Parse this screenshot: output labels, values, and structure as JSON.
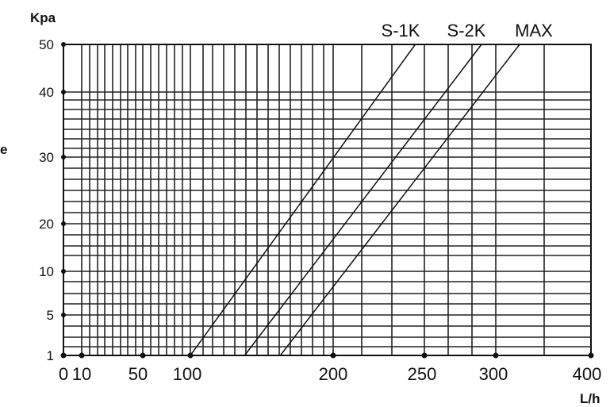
{
  "chart_data": {
    "type": "line",
    "y_unit": "Kpa",
    "x_unit": "L/h",
    "side_label": "e",
    "x_ticks": [
      {
        "value": 0,
        "label": "0"
      },
      {
        "value": 10,
        "label": "10"
      },
      {
        "value": 50,
        "label": "50"
      },
      {
        "value": 100,
        "label": "100"
      },
      {
        "value": 200,
        "label": "200"
      },
      {
        "value": 250,
        "label": "250"
      },
      {
        "value": 300,
        "label": "300"
      },
      {
        "value": 400,
        "label": "400"
      }
    ],
    "y_ticks": [
      {
        "value": 1,
        "label": "1"
      },
      {
        "value": 5,
        "label": "5"
      },
      {
        "value": 10,
        "label": "10"
      },
      {
        "value": 20,
        "label": "20"
      },
      {
        "value": 30,
        "label": "30"
      },
      {
        "value": 40,
        "label": "40"
      },
      {
        "value": 50,
        "label": "50"
      }
    ],
    "grid": true,
    "legend": "top-right",
    "series": [
      {
        "name": "S-1K",
        "x": [
          100,
          245
        ],
        "y": [
          1,
          50
        ]
      },
      {
        "name": "S-2K",
        "x": [
          138,
          290
        ],
        "y": [
          1,
          50
        ]
      },
      {
        "name": "MAX",
        "x": [
          163,
          325
        ],
        "y": [
          1,
          50
        ]
      }
    ]
  }
}
